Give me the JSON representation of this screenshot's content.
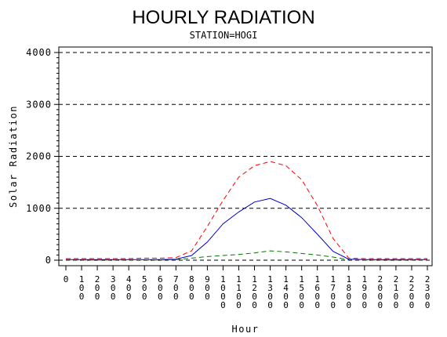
{
  "chart_data": {
    "type": "line",
    "title": "HOURLY RADIATION",
    "subtitle": "STATION=HOGI",
    "xlabel": "Hour",
    "ylabel": "Solar Radiation",
    "ylim": [
      0,
      4000
    ],
    "xlim": [
      0,
      2300
    ],
    "y_ticks": [
      0,
      1000,
      2000,
      3000,
      4000
    ],
    "y_tick_labels": [
      "0",
      "1000",
      "2000",
      "3000",
      "4000"
    ],
    "x_ticks": [
      0,
      100,
      200,
      300,
      400,
      500,
      600,
      700,
      800,
      900,
      1000,
      1100,
      1200,
      1300,
      1400,
      1500,
      1600,
      1700,
      1800,
      1900,
      2000,
      2100,
      2200,
      2300
    ],
    "x_tick_labels": [
      "0",
      "100",
      "200",
      "300",
      "400",
      "500",
      "600",
      "700",
      "800",
      "900",
      "1000",
      "1100",
      "1200",
      "1300",
      "1400",
      "1500",
      "1600",
      "1700",
      "1800",
      "1900",
      "2000",
      "2100",
      "2200",
      "2300"
    ],
    "grid": "horizontal dashed",
    "legend": "none",
    "x": [
      0,
      100,
      200,
      300,
      400,
      500,
      600,
      700,
      800,
      900,
      1000,
      1100,
      1200,
      1300,
      1400,
      1500,
      1600,
      1700,
      1800,
      1900,
      2000,
      2100,
      2200,
      2300
    ],
    "series": [
      {
        "color": "#ff0000",
        "dash": "dashed",
        "values": [
          30,
          30,
          30,
          30,
          30,
          40,
          40,
          50,
          180,
          650,
          1150,
          1600,
          1820,
          1900,
          1820,
          1550,
          1050,
          420,
          40,
          30,
          30,
          30,
          30,
          30
        ]
      },
      {
        "color": "#0000cc",
        "dash": "solid",
        "values": [
          10,
          10,
          10,
          10,
          10,
          10,
          10,
          20,
          90,
          350,
          700,
          930,
          1120,
          1190,
          1060,
          820,
          500,
          170,
          20,
          10,
          10,
          10,
          10,
          10
        ]
      },
      {
        "color": "#007700",
        "dash": "dashed",
        "values": [
          5,
          5,
          5,
          5,
          5,
          5,
          5,
          10,
          40,
          70,
          90,
          110,
          140,
          180,
          160,
          130,
          100,
          60,
          10,
          5,
          5,
          5,
          5,
          5
        ]
      }
    ]
  }
}
